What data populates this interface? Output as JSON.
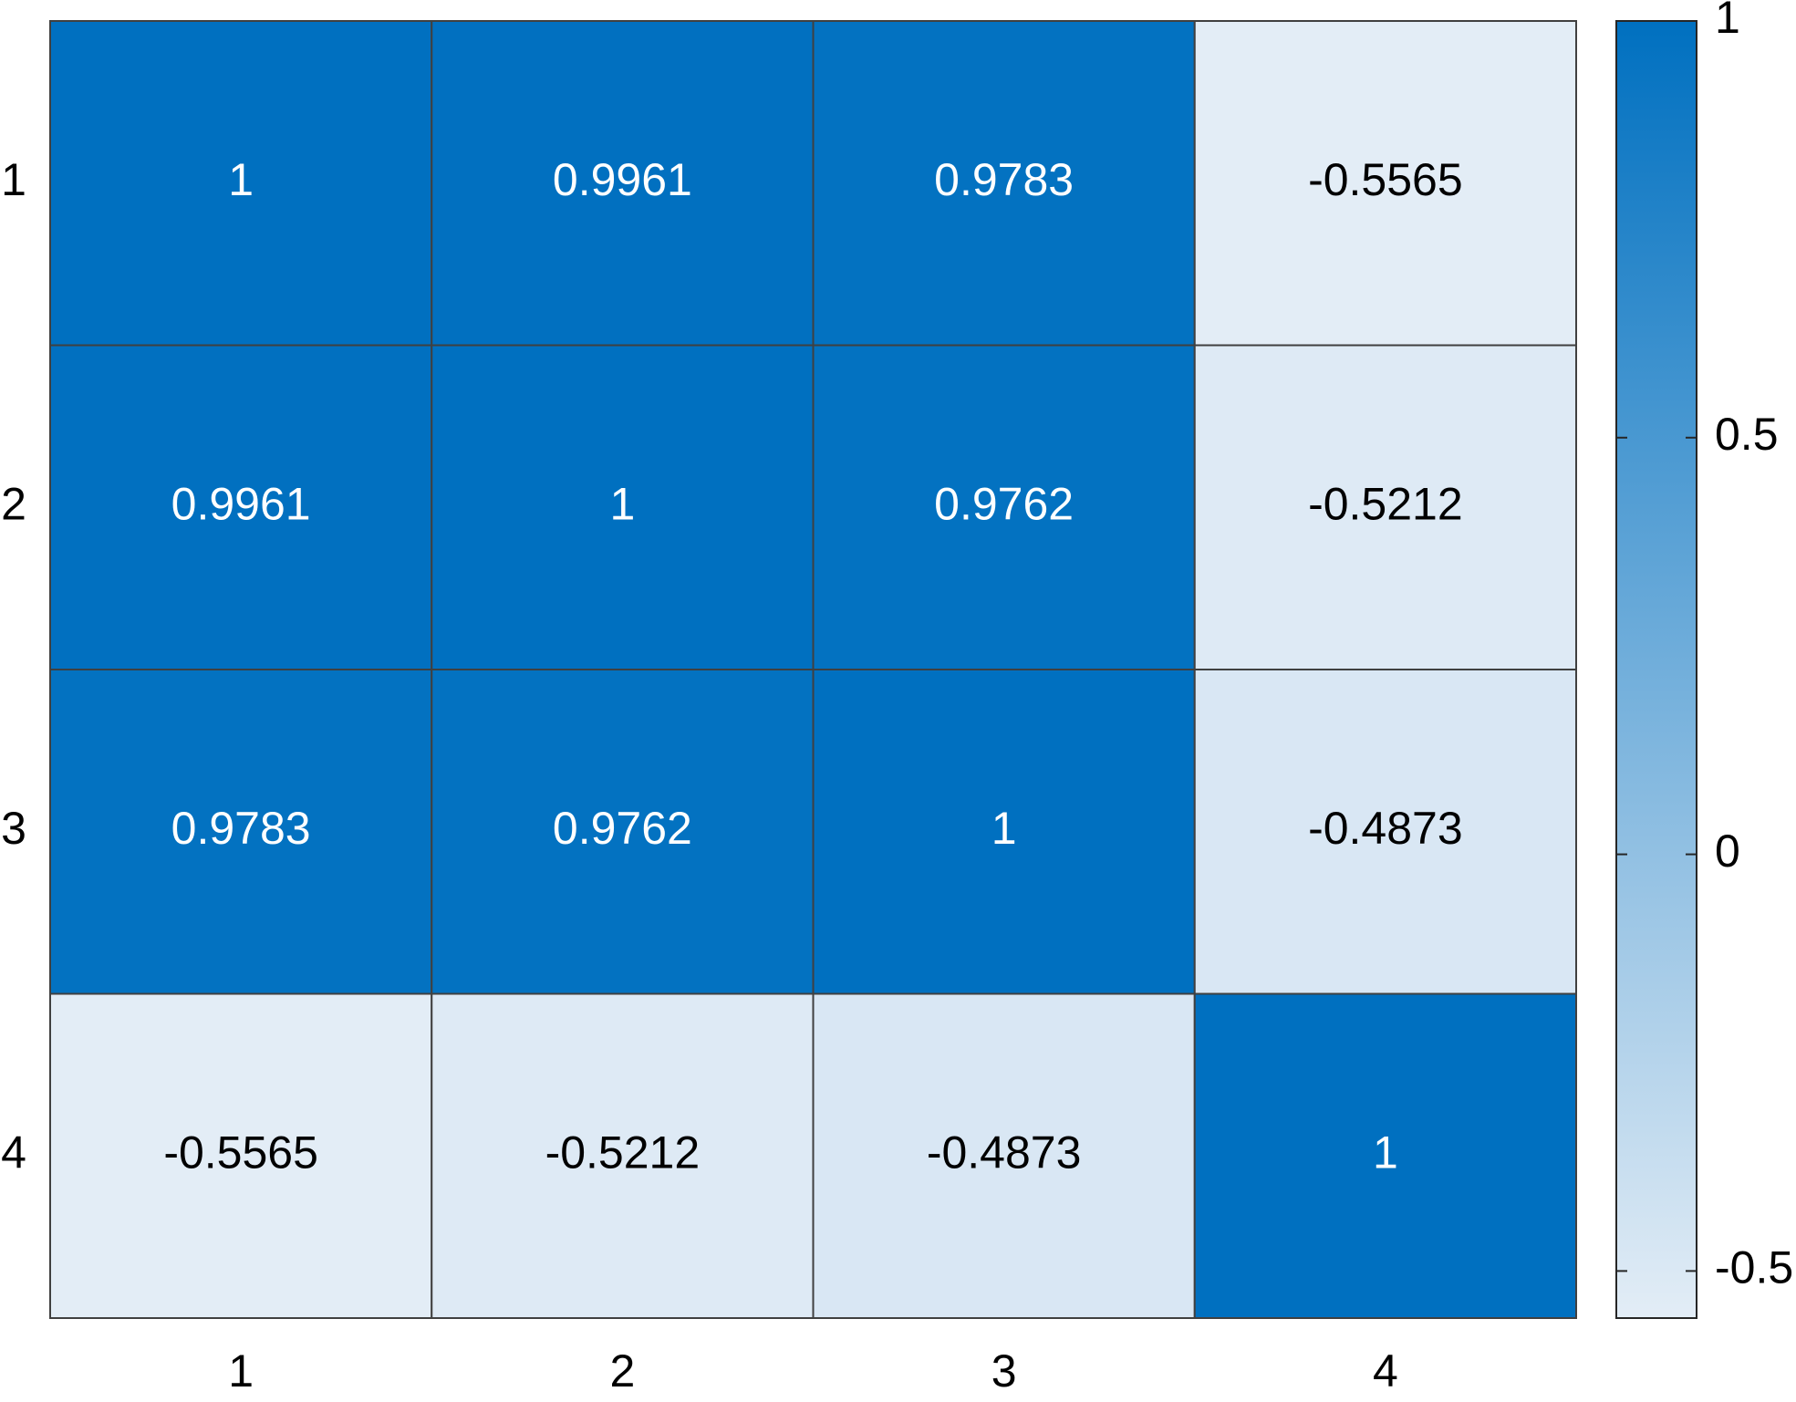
{
  "chart_data": {
    "type": "heatmap",
    "x_categories": [
      "1",
      "2",
      "3",
      "4"
    ],
    "y_categories": [
      "1",
      "2",
      "3",
      "4"
    ],
    "values": [
      [
        1,
        0.9961,
        0.9783,
        -0.5565
      ],
      [
        0.9961,
        1,
        0.9762,
        -0.5212
      ],
      [
        0.9783,
        0.9762,
        1,
        -0.4873
      ],
      [
        -0.5565,
        -0.5212,
        -0.4873,
        1
      ]
    ],
    "colormap": [
      "#e3edf6",
      "#0070c0"
    ],
    "clim": [
      -0.5565,
      1
    ],
    "colorbar_ticks": [
      -0.5,
      0,
      0.5,
      1
    ]
  }
}
